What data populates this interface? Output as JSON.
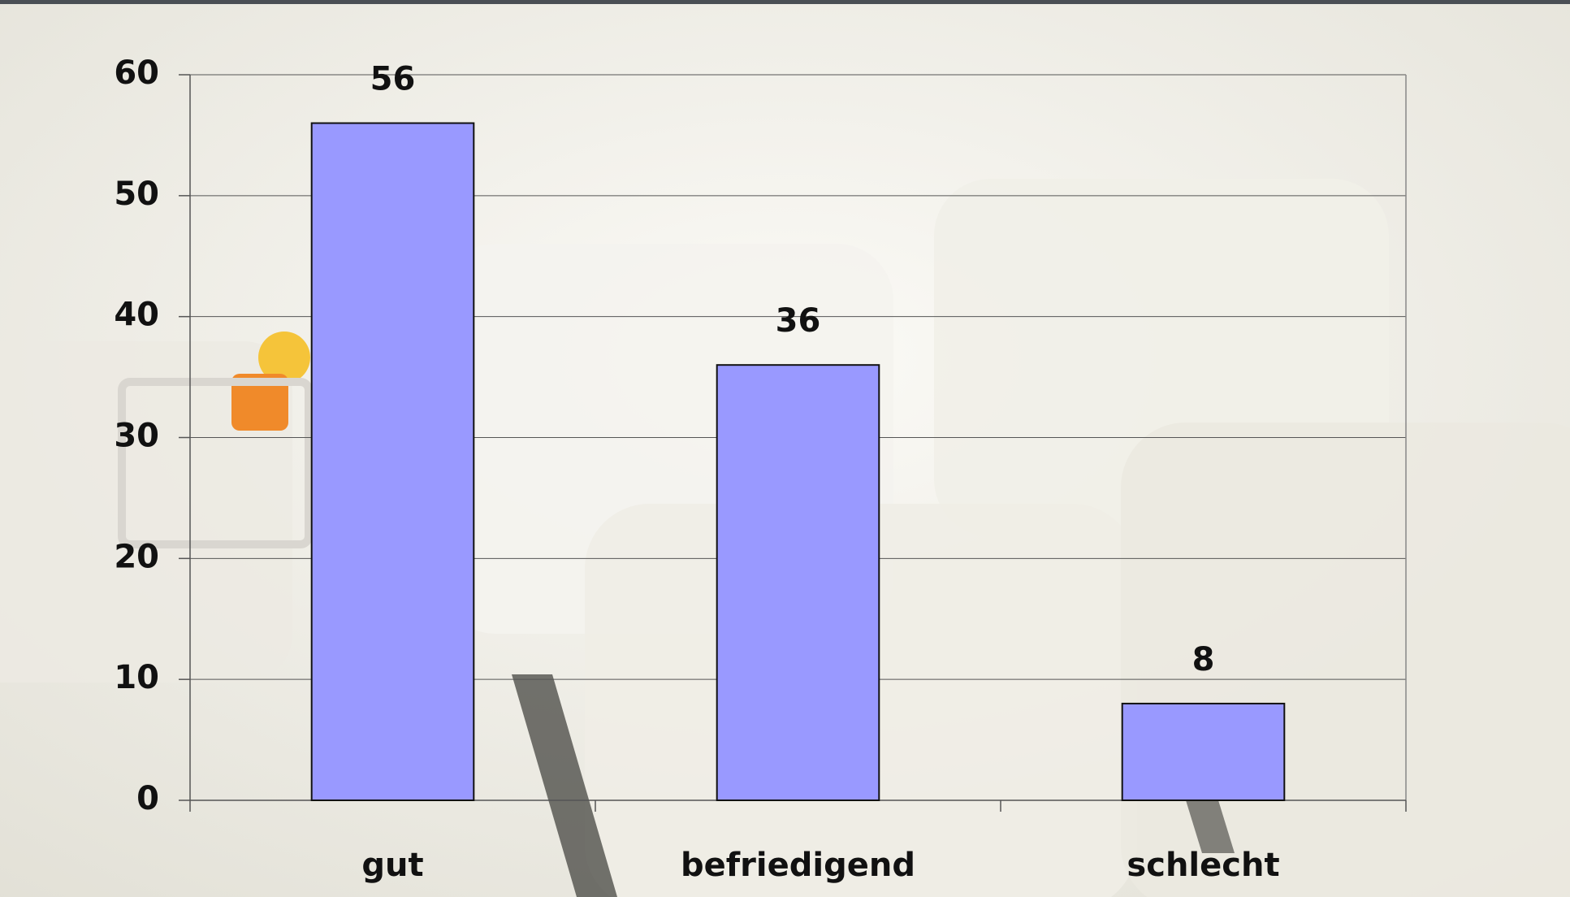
{
  "chart_data": {
    "type": "bar",
    "categories": [
      "gut",
      "befriedigend",
      "schlecht"
    ],
    "values": [
      56,
      36,
      8
    ],
    "color": "#9999ff",
    "ylim": [
      0,
      60
    ],
    "yticks": [
      0,
      10,
      20,
      30,
      40,
      50,
      60
    ],
    "grid": true
  }
}
